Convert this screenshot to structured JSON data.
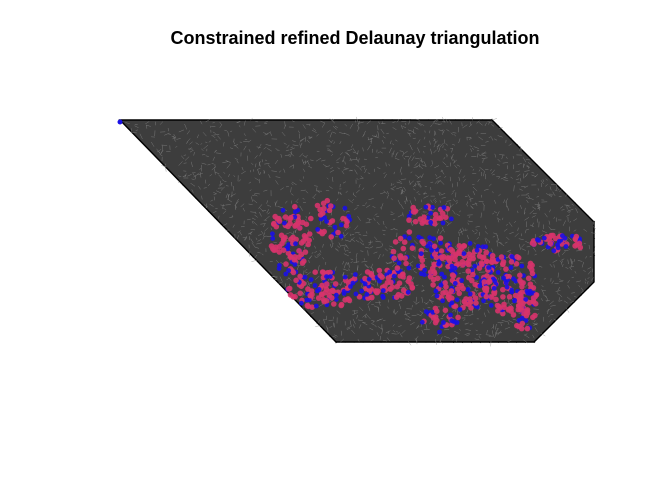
{
  "figure": {
    "title": "Constrained refined Delaunay triangulation"
  },
  "colors": {
    "background": "#ffffff",
    "inner_fill": "#3d3d3d",
    "inner_mesh": "#8a8a8a",
    "outer_mesh": "#000000",
    "points_primary": "#d6336c",
    "points_secondary": "#1a10e6"
  },
  "chart_data": {
    "type": "scatter",
    "title": "Constrained refined Delaunay triangulation",
    "xlabel": "",
    "ylabel": "",
    "grid": false,
    "legend": "none",
    "series": []
  }
}
